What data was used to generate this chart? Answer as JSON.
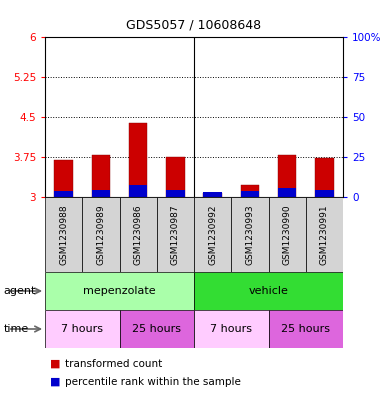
{
  "title": "GDS5057 / 10608648",
  "samples": [
    "GSM1230988",
    "GSM1230989",
    "GSM1230986",
    "GSM1230987",
    "GSM1230992",
    "GSM1230993",
    "GSM1230990",
    "GSM1230991"
  ],
  "red_values": [
    3.7,
    3.78,
    4.38,
    3.75,
    3.08,
    3.22,
    3.78,
    3.73
  ],
  "blue_values": [
    3.08,
    3.1,
    3.18,
    3.1,
    3.05,
    3.08,
    3.12,
    3.1
  ],
  "bar_bottom": 3.0,
  "ylim_left": [
    3.0,
    6.0
  ],
  "ylim_right": [
    0,
    100
  ],
  "yticks_left": [
    3.0,
    3.75,
    4.5,
    5.25,
    6.0
  ],
  "ytick_labels_left": [
    "3",
    "3.75",
    "4.5",
    "5.25",
    "6"
  ],
  "yticks_right": [
    0,
    25,
    50,
    75,
    100
  ],
  "ytick_labels_right": [
    "0",
    "25",
    "50",
    "75",
    "100%"
  ],
  "hlines": [
    3.75,
    4.5,
    5.25
  ],
  "agent_groups": [
    {
      "label": "mepenzolate",
      "start": 0,
      "end": 4,
      "color": "#aaffaa"
    },
    {
      "label": "vehicle",
      "start": 4,
      "end": 8,
      "color": "#33dd33"
    }
  ],
  "time_groups": [
    {
      "label": "7 hours",
      "start": 0,
      "end": 2,
      "color": "#ffccff"
    },
    {
      "label": "25 hours",
      "start": 2,
      "end": 4,
      "color": "#dd66dd"
    },
    {
      "label": "7 hours",
      "start": 4,
      "end": 6,
      "color": "#ffccff"
    },
    {
      "label": "25 hours",
      "start": 6,
      "end": 8,
      "color": "#dd66dd"
    }
  ],
  "legend_red": "transformed count",
  "legend_blue": "percentile rank within the sample",
  "bar_width": 0.5,
  "bar_color_red": "#cc0000",
  "bar_color_blue": "#0000cc",
  "label_agent": "agent",
  "label_time": "time",
  "plot_bg": "#ffffff"
}
